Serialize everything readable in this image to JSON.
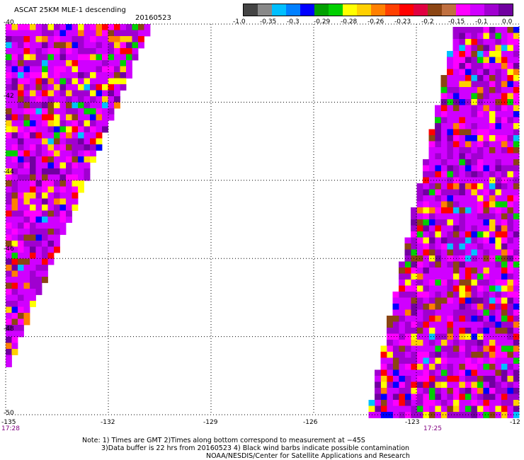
{
  "header": {
    "title": "ASCAT 25KM MLE-1 descending",
    "date": "20160523"
  },
  "colorbar": {
    "colors": [
      "#444444",
      "#888888",
      "#00bfff",
      "#0080ff",
      "#0000ff",
      "#00a000",
      "#00d000",
      "#ffff00",
      "#ffd000",
      "#ff8000",
      "#ff4000",
      "#ff0000",
      "#e00040",
      "#8b4513",
      "#c07040",
      "#ff00ff",
      "#d000ff",
      "#a000d0",
      "#7000a0"
    ],
    "tick_labels": [
      "-1.0",
      "-0.35",
      "-0.3",
      "-0.29",
      "-0.28",
      "-0.26",
      "-0.23",
      "-0.2",
      "-0.15",
      "-0.1",
      "0.0"
    ]
  },
  "axes": {
    "x_labels": [
      "-135",
      "-132",
      "-129",
      "-126",
      "-123",
      "-12"
    ],
    "y_labels": [
      "-40",
      "-42",
      "-44",
      "-46",
      "-48",
      "-50"
    ],
    "lon_range": [
      -135,
      -120
    ],
    "lat_range": [
      -50,
      -40
    ]
  },
  "swaths": {
    "left_time": "17:28",
    "right_time": "17:25"
  },
  "notes": {
    "line1": "Note: 1) Times are GMT 2)Times along bottom correspond to measurement at −45S",
    "line2": "3)Data buffer is 22 hrs from 20160523 4) Black wind barbs indicate possible contamination",
    "line3": "NOAA/NESDIS/Center for Satellite Applications and Research"
  }
}
